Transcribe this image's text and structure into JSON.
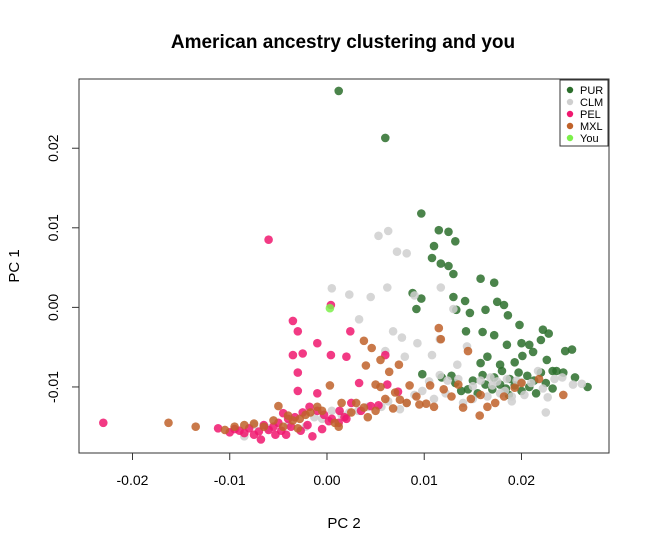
{
  "chart_data": {
    "type": "scatter",
    "title": "American ancestry clustering and you",
    "xlabel": "PC 2",
    "ylabel": "PC 1",
    "xlim": [
      -0.0255,
      0.029
    ],
    "ylim": [
      -0.0183,
      0.0287
    ],
    "xticks": [
      -0.02,
      -0.01,
      0.0,
      0.01,
      0.02
    ],
    "xtick_labels": [
      "-0.02",
      "-0.01",
      "0.00",
      "0.01",
      "0.02"
    ],
    "yticks": [
      -0.01,
      0.0,
      0.01,
      0.02
    ],
    "ytick_labels": [
      "-0.01",
      "0.00",
      "0.01",
      "0.02"
    ],
    "grid": false,
    "legend_position": "top-right",
    "series": [
      {
        "name": "PUR",
        "color": "#2b6e2b",
        "points": [
          [
            0.0012,
            0.0272
          ],
          [
            0.006,
            0.0213
          ],
          [
            0.0097,
            0.0118
          ],
          [
            0.0115,
            0.0097
          ],
          [
            0.0125,
            0.0095
          ],
          [
            0.0132,
            0.0083
          ],
          [
            0.011,
            0.0077
          ],
          [
            0.0108,
            0.0062
          ],
          [
            0.0117,
            0.0055
          ],
          [
            0.0125,
            0.0052
          ],
          [
            0.013,
            0.0042
          ],
          [
            0.0158,
            0.0036
          ],
          [
            0.0172,
            0.0031
          ],
          [
            0.0088,
            0.0018
          ],
          [
            0.0097,
            0.0011
          ],
          [
            0.013,
            0.0013
          ],
          [
            0.0142,
            0.0008
          ],
          [
            0.0175,
            0.0007
          ],
          [
            0.0182,
            0.0003
          ],
          [
            0.0092,
            -0.0002
          ],
          [
            0.0133,
            -0.0003
          ],
          [
            0.0147,
            -0.0007
          ],
          [
            0.0163,
            -0.0003
          ],
          [
            0.0186,
            -0.001
          ],
          [
            0.0143,
            -0.003
          ],
          [
            0.016,
            -0.0031
          ],
          [
            0.0172,
            -0.0035
          ],
          [
            0.0198,
            -0.0022
          ],
          [
            0.0222,
            -0.0028
          ],
          [
            0.0228,
            -0.0033
          ],
          [
            0.0185,
            -0.0047
          ],
          [
            0.02,
            -0.0045
          ],
          [
            0.0208,
            -0.0047
          ],
          [
            0.022,
            -0.0041
          ],
          [
            0.0212,
            -0.0056
          ],
          [
            0.0165,
            -0.0062
          ],
          [
            0.0158,
            -0.007
          ],
          [
            0.0178,
            -0.0072
          ],
          [
            0.0193,
            -0.0069
          ],
          [
            0.0201,
            -0.0061
          ],
          [
            0.0245,
            -0.0055
          ],
          [
            0.0252,
            -0.0053
          ],
          [
            0.0226,
            -0.0066
          ],
          [
            0.0232,
            -0.008
          ],
          [
            0.016,
            -0.0085
          ],
          [
            0.0172,
            -0.0088
          ],
          [
            0.018,
            -0.008
          ],
          [
            0.0188,
            -0.009
          ],
          [
            0.0197,
            -0.0082
          ],
          [
            0.0206,
            -0.0086
          ],
          [
            0.0213,
            -0.0092
          ],
          [
            0.022,
            -0.0082
          ],
          [
            0.0236,
            -0.008
          ],
          [
            0.0243,
            -0.0082
          ],
          [
            0.0255,
            -0.0088
          ],
          [
            0.0268,
            -0.01
          ],
          [
            0.015,
            -0.0092
          ],
          [
            0.0163,
            -0.0097
          ],
          [
            0.017,
            -0.0103
          ],
          [
            0.0178,
            -0.0097
          ],
          [
            0.0184,
            -0.0102
          ],
          [
            0.0193,
            -0.0098
          ],
          [
            0.02,
            -0.0105
          ],
          [
            0.0208,
            -0.01
          ],
          [
            0.0215,
            -0.0108
          ],
          [
            0.0225,
            -0.0095
          ],
          [
            0.0232,
            -0.0102
          ],
          [
            0.0145,
            -0.0103
          ],
          [
            0.0132,
            -0.0095
          ],
          [
            0.0138,
            -0.0105
          ],
          [
            0.0118,
            -0.0088
          ],
          [
            0.0128,
            -0.0086
          ],
          [
            0.0155,
            -0.0108
          ],
          [
            0.0187,
            -0.011
          ],
          [
            0.0098,
            -0.0084
          ]
        ]
      },
      {
        "name": "CLM",
        "color": "#cfcfcf",
        "points": [
          [
            0.0053,
            0.009
          ],
          [
            0.0063,
            0.0096
          ],
          [
            0.0082,
            0.0068
          ],
          [
            0.0072,
            0.007
          ],
          [
            0.0062,
            0.0025
          ],
          [
            0.0005,
            0.0024
          ],
          [
            0.0023,
            0.0016
          ],
          [
            0.0045,
            0.0013
          ],
          [
            0.009,
            0.0015
          ],
          [
            0.0117,
            0.0025
          ],
          [
            0.013,
            -0.0002
          ],
          [
            0.0033,
            -0.0015
          ],
          [
            0.0068,
            -0.003
          ],
          [
            0.0077,
            -0.0038
          ],
          [
            0.0093,
            -0.0045
          ],
          [
            0.0116,
            -0.004
          ],
          [
            0.0144,
            -0.0049
          ],
          [
            0.006,
            -0.0055
          ],
          [
            0.008,
            -0.0062
          ],
          [
            0.0108,
            -0.006
          ],
          [
            0.0134,
            -0.0072
          ],
          [
            0.0105,
            -0.0093
          ],
          [
            0.0116,
            -0.0085
          ],
          [
            0.0124,
            -0.0092
          ],
          [
            0.0135,
            -0.009
          ],
          [
            0.015,
            -0.0099
          ],
          [
            0.0158,
            -0.0092
          ],
          [
            0.0168,
            -0.0088
          ],
          [
            0.0175,
            -0.0093
          ],
          [
            0.0183,
            -0.0105
          ],
          [
            0.019,
            -0.0112
          ],
          [
            0.0195,
            -0.0092
          ],
          [
            0.0203,
            -0.011
          ],
          [
            0.021,
            -0.0095
          ],
          [
            0.0217,
            -0.008
          ],
          [
            0.0222,
            -0.0102
          ],
          [
            0.0227,
            -0.0113
          ],
          [
            0.0234,
            -0.009
          ],
          [
            0.0242,
            -0.0088
          ],
          [
            0.0253,
            -0.0097
          ],
          [
            0.0262,
            -0.0096
          ],
          [
            0.0225,
            -0.0132
          ],
          [
            0.019,
            -0.0118
          ],
          [
            0.0178,
            -0.0108
          ],
          [
            0.0165,
            -0.0112
          ],
          [
            0.015,
            -0.0115
          ],
          [
            0.014,
            -0.012
          ],
          [
            0.0122,
            -0.0108
          ],
          [
            0.011,
            -0.0115
          ],
          [
            0.0098,
            -0.0105
          ],
          [
            0.009,
            -0.011
          ],
          [
            0.0082,
            -0.012
          ],
          [
            0.0075,
            -0.0128
          ],
          [
            0.0063,
            -0.0118
          ],
          [
            0.0056,
            -0.0125
          ],
          [
            0.0042,
            -0.0125
          ],
          [
            0.0032,
            -0.013
          ],
          [
            0.0023,
            -0.0132
          ],
          [
            0.0015,
            -0.0135
          ],
          [
            0.0005,
            -0.013
          ],
          [
            -0.0005,
            -0.014
          ],
          [
            -0.0013,
            -0.0138
          ],
          [
            -0.0022,
            -0.015
          ],
          [
            -0.004,
            -0.0148
          ],
          [
            -0.006,
            -0.0152
          ],
          [
            -0.0075,
            -0.0148
          ],
          [
            -0.0085,
            -0.0162
          ],
          [
            0.02,
            -0.0094
          ],
          [
            0.017,
            -0.0098
          ],
          [
            0.0185,
            -0.009
          ]
        ]
      },
      {
        "name": "PEL",
        "color": "#f0186f",
        "points": [
          [
            -0.006,
            0.0085
          ],
          [
            0.0004,
            0.0003
          ],
          [
            -0.0035,
            -0.0017
          ],
          [
            -0.003,
            -0.003
          ],
          [
            0.0024,
            -0.003
          ],
          [
            -0.0025,
            -0.0058
          ],
          [
            -0.0035,
            -0.006
          ],
          [
            -0.001,
            -0.0045
          ],
          [
            0.0004,
            -0.006
          ],
          [
            0.002,
            -0.0062
          ],
          [
            -0.003,
            -0.0082
          ],
          [
            0.0033,
            -0.0095
          ],
          [
            0.006,
            -0.006
          ],
          [
            -0.003,
            -0.0105
          ],
          [
            -0.001,
            -0.0108
          ],
          [
            0.0062,
            -0.0097
          ],
          [
            0.0073,
            -0.0106
          ],
          [
            0.0025,
            -0.012
          ],
          [
            0.0035,
            -0.013
          ],
          [
            0.0045,
            -0.0124
          ],
          [
            0.0053,
            -0.0123
          ],
          [
            0.0013,
            -0.013
          ],
          [
            0.0018,
            -0.0138
          ],
          [
            0.0005,
            -0.014
          ],
          [
            -0.0003,
            -0.0135
          ],
          [
            -0.001,
            -0.013
          ],
          [
            -0.0018,
            -0.0125
          ],
          [
            -0.0025,
            -0.0132
          ],
          [
            -0.0033,
            -0.0138
          ],
          [
            -0.004,
            -0.014
          ],
          [
            -0.0045,
            -0.0133
          ],
          [
            -0.005,
            -0.0145
          ],
          [
            -0.0055,
            -0.015
          ],
          [
            -0.006,
            -0.0154
          ],
          [
            -0.0065,
            -0.0148
          ],
          [
            -0.007,
            -0.0156
          ],
          [
            -0.0075,
            -0.016
          ],
          [
            -0.008,
            -0.0152
          ],
          [
            -0.0085,
            -0.0158
          ],
          [
            -0.009,
            -0.0155
          ],
          [
            -0.0095,
            -0.0153
          ],
          [
            -0.01,
            -0.0157
          ],
          [
            -0.0112,
            -0.0152
          ],
          [
            -0.023,
            -0.0145
          ],
          [
            -0.0037,
            -0.015
          ],
          [
            -0.0027,
            -0.0155
          ],
          [
            -0.002,
            -0.0148
          ],
          [
            -0.0015,
            -0.0162
          ],
          [
            -0.0005,
            -0.0153
          ],
          [
            0.0002,
            -0.0143
          ],
          [
            0.0012,
            -0.0145
          ],
          [
            0.002,
            -0.014
          ],
          [
            -0.0042,
            -0.016
          ],
          [
            -0.0068,
            -0.0166
          ],
          [
            -0.0053,
            -0.016
          ],
          [
            -0.0047,
            -0.0155
          ]
        ]
      },
      {
        "name": "MXL",
        "color": "#c0622a",
        "points": [
          [
            0.0038,
            -0.0042
          ],
          [
            0.0046,
            -0.0051
          ],
          [
            0.0055,
            -0.0066
          ],
          [
            0.004,
            -0.0073
          ],
          [
            0.0064,
            -0.0081
          ],
          [
            0.0074,
            -0.0072
          ],
          [
            0.0115,
            -0.0026
          ],
          [
            0.0117,
            -0.004
          ],
          [
            0.0145,
            -0.0055
          ],
          [
            0.005,
            -0.0097
          ],
          [
            0.0055,
            -0.01
          ],
          [
            0.0085,
            -0.0098
          ],
          [
            0.0106,
            -0.0098
          ],
          [
            0.012,
            -0.0103
          ],
          [
            0.0135,
            -0.0097
          ],
          [
            0.0148,
            -0.0115
          ],
          [
            0.0158,
            -0.011
          ],
          [
            0.006,
            -0.0115
          ],
          [
            0.007,
            -0.0107
          ],
          [
            0.0075,
            -0.0116
          ],
          [
            0.0082,
            -0.012
          ],
          [
            0.0092,
            -0.0112
          ],
          [
            0.0102,
            -0.0121
          ],
          [
            0.011,
            -0.0125
          ],
          [
            0.014,
            -0.0126
          ],
          [
            0.0157,
            -0.0136
          ],
          [
            0.0173,
            -0.012
          ],
          [
            0.02,
            -0.0095
          ],
          [
            0.0218,
            -0.009
          ],
          [
            0.0243,
            -0.011
          ],
          [
            0.0003,
            -0.0098
          ],
          [
            0.0015,
            -0.012
          ],
          [
            0.003,
            -0.012
          ],
          [
            0.0038,
            -0.0126
          ],
          [
            0.0042,
            -0.0138
          ],
          [
            -0.0005,
            -0.013
          ],
          [
            -0.001,
            -0.0125
          ],
          [
            -0.0017,
            -0.0132
          ],
          [
            -0.0028,
            -0.014
          ],
          [
            -0.0035,
            -0.0142
          ],
          [
            -0.004,
            -0.0136
          ],
          [
            -0.005,
            -0.0124
          ],
          [
            -0.0055,
            -0.0142
          ],
          [
            -0.0065,
            -0.015
          ],
          [
            -0.0075,
            -0.0146
          ],
          [
            -0.0085,
            -0.0148
          ],
          [
            -0.0095,
            -0.015
          ],
          [
            -0.0105,
            -0.0154
          ],
          [
            -0.0135,
            -0.015
          ],
          [
            -0.0163,
            -0.0145
          ],
          [
            -0.0022,
            -0.0135
          ],
          [
            0.0008,
            -0.0145
          ],
          [
            0.0025,
            -0.0132
          ],
          [
            0.005,
            -0.013
          ],
          [
            0.0068,
            -0.0127
          ],
          [
            0.0095,
            -0.0122
          ],
          [
            0.0128,
            -0.0112
          ],
          [
            0.0165,
            -0.0125
          ],
          [
            0.0182,
            -0.0112
          ],
          [
            0.0193,
            -0.0101
          ],
          [
            -0.0045,
            -0.015
          ],
          [
            -0.003,
            -0.0152
          ],
          [
            0.0012,
            -0.015
          ]
        ]
      },
      {
        "name": "You",
        "color": "#7cf04a",
        "points": [
          [
            0.0003,
            -0.0001
          ]
        ]
      }
    ]
  }
}
